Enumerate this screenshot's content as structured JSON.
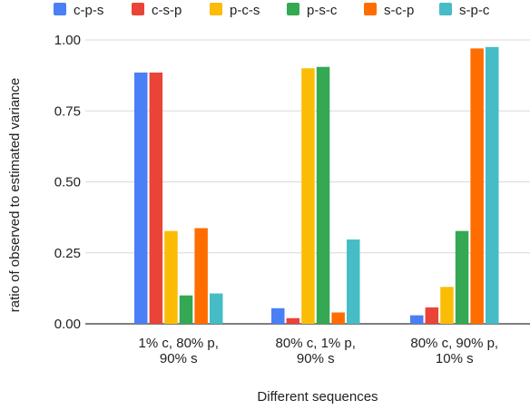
{
  "chart_data": {
    "type": "bar",
    "xlabel": "Different sequences",
    "ylabel": "ratio of observed to estimated variance",
    "ylim": [
      0,
      1.0
    ],
    "yticks": [
      "0.00",
      "0.25",
      "0.50",
      "0.75",
      "1.00"
    ],
    "legend_position": "top",
    "grid": true,
    "categories": [
      [
        "1% c, 80% p,",
        "90% s"
      ],
      [
        "80% c, 1% p,",
        "90% s"
      ],
      [
        "80% c, 90% p,",
        "10% s"
      ]
    ],
    "series": [
      {
        "name": "c-p-s",
        "color": "#4a7ff5",
        "values": [
          0.885,
          0.055,
          0.03
        ]
      },
      {
        "name": "c-s-p",
        "color": "#ea4436",
        "values": [
          0.885,
          0.02,
          0.058
        ]
      },
      {
        "name": "p-c-s",
        "color": "#fbbc05",
        "values": [
          0.327,
          0.9,
          0.13
        ]
      },
      {
        "name": "p-s-c",
        "color": "#34a853",
        "values": [
          0.1,
          0.905,
          0.327
        ]
      },
      {
        "name": "s-c-p",
        "color": "#ff6d01",
        "values": [
          0.337,
          0.04,
          0.97
        ]
      },
      {
        "name": "s-p-c",
        "color": "#46bdc6",
        "values": [
          0.107,
          0.297,
          0.975
        ]
      }
    ]
  }
}
